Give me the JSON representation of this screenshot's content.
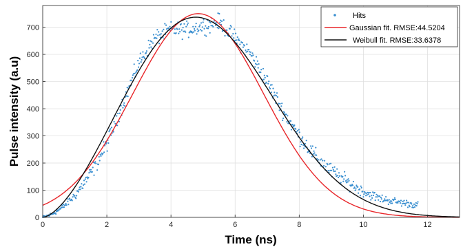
{
  "chart_data": {
    "type": "scatter",
    "title": "",
    "xlabel": "Time (ns)",
    "ylabel": "Pulse intensity (a.u)",
    "xlim": [
      0,
      13
    ],
    "ylim": [
      0,
      780
    ],
    "xticks": [
      0,
      2,
      4,
      6,
      8,
      10,
      12
    ],
    "yticks": [
      0,
      100,
      200,
      300,
      400,
      500,
      600,
      700
    ],
    "grid": true,
    "legend_position": "top-right",
    "series": [
      {
        "name": "Hits",
        "type": "scatter",
        "color": "#3a8fd0",
        "x_range": [
          0,
          11.7
        ],
        "sample_count": 600,
        "profile": {
          "x": [
            0,
            0.3,
            0.6,
            1.0,
            1.5,
            2.0,
            2.5,
            3.0,
            3.5,
            4.0,
            4.5,
            5.0,
            5.5,
            6.0,
            6.5,
            7.0,
            7.5,
            8.0,
            8.5,
            9.0,
            9.5,
            10.0,
            10.5,
            11.0,
            11.7
          ],
          "y": [
            0,
            12,
            35,
            80,
            160,
            270,
            420,
            570,
            660,
            690,
            690,
            705,
            720,
            660,
            600,
            500,
            390,
            300,
            225,
            170,
            130,
            95,
            70,
            58,
            45
          ]
        },
        "spread": 22
      },
      {
        "name": "Gaussian fit. RMSE:44.5204",
        "type": "line",
        "color": "#e8262a",
        "model": "gaussian",
        "amplitude": 750,
        "mean": 4.85,
        "sigma": 2.04,
        "x_range": [
          0,
          13
        ]
      },
      {
        "name": "Weibull fit. RMSE:33.6378",
        "type": "line",
        "color": "#111111",
        "model": "weibull",
        "scale": 5.75,
        "shape": 2.6,
        "peak": 737,
        "x_range": [
          0,
          13
        ]
      }
    ]
  }
}
